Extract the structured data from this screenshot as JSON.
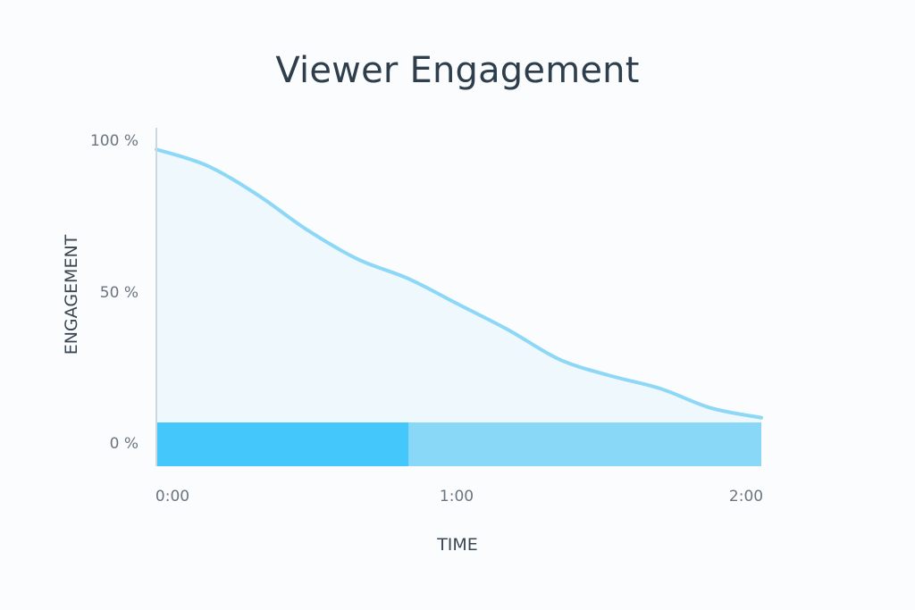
{
  "chart_data": {
    "type": "area",
    "title": "Viewer Engagement",
    "xlabel": "TIME",
    "ylabel": "ENGAGEMENT",
    "x_ticks": [
      "0:00",
      "1:00",
      "2:00"
    ],
    "y_ticks": [
      "100 %",
      "50 %",
      "0 %"
    ],
    "xlim": [
      0,
      120
    ],
    "ylim": [
      0,
      100
    ],
    "series": [
      {
        "x": [
          0,
          10,
          20,
          30,
          40,
          50,
          60,
          70,
          80,
          90,
          100,
          110,
          120
        ],
        "y": [
          98,
          93,
          84,
          73,
          64,
          58,
          50,
          42,
          33,
          28,
          24,
          18,
          15
        ]
      }
    ],
    "progress_bar": {
      "watched_seconds": 50,
      "total_seconds": 120
    },
    "colors": {
      "line": "#8dd8f6",
      "area_fill": "#eef8fd",
      "bar_watched": "#44c8fb",
      "bar_remaining": "#8ad8f8",
      "axis": "#cfd8df"
    }
  }
}
